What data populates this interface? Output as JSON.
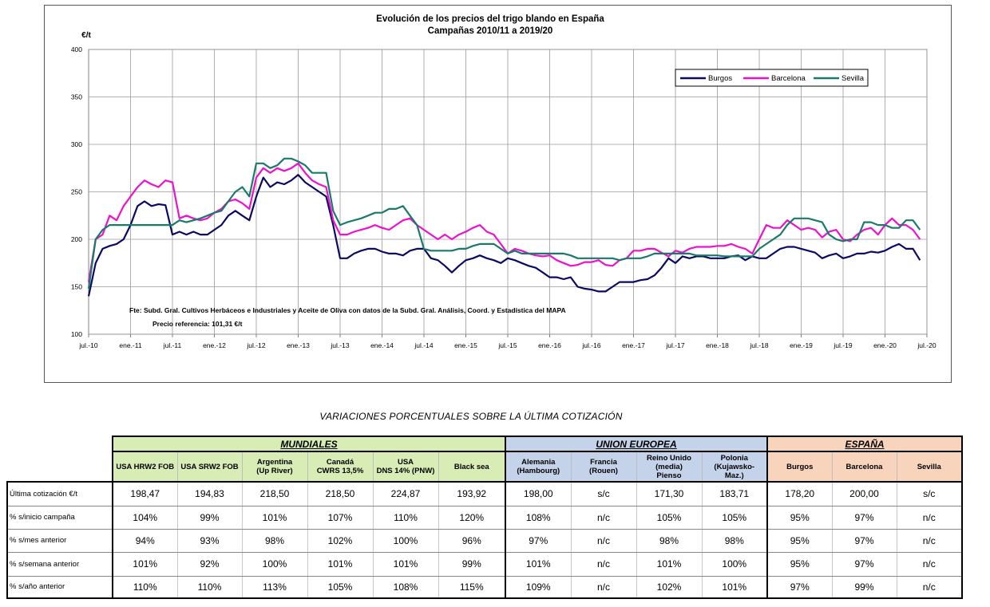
{
  "chart_data": {
    "type": "line",
    "title": "Evolución de los precios del trigo blando en España",
    "subtitle": "Campañas 2010/11 a 2019/20",
    "ylabel": "€/t",
    "ylim": [
      100,
      400
    ],
    "yticks": [
      100,
      150,
      200,
      250,
      300,
      350,
      400
    ],
    "xlim": [
      "2010-07",
      "2020-07"
    ],
    "xticks": [
      "jul.-10",
      "ene.-11",
      "jul.-11",
      "ene.-12",
      "jul.-12",
      "ene.-13",
      "jul.-13",
      "ene.-14",
      "jul.-14",
      "ene.-15",
      "jul.-15",
      "ene.-16",
      "jul.-16",
      "ene.-17",
      "jul.-17",
      "ene.-18",
      "jul.-18",
      "ene.-19",
      "jul.-19",
      "ene.-20",
      "jul.-20"
    ],
    "grid": true,
    "legend_position": "top-right",
    "series": [
      {
        "name": "Burgos",
        "color": "#0a0a64",
        "x": [
          "2010-07",
          "2010-08",
          "2010-09",
          "2010-10",
          "2010-11",
          "2010-12",
          "2011-01",
          "2011-02",
          "2011-03",
          "2011-04",
          "2011-05",
          "2011-06",
          "2011-07",
          "2011-08",
          "2011-09",
          "2011-10",
          "2011-11",
          "2011-12",
          "2012-01",
          "2012-02",
          "2012-03",
          "2012-04",
          "2012-05",
          "2012-06",
          "2012-07",
          "2012-08",
          "2012-09",
          "2012-10",
          "2012-11",
          "2012-12",
          "2013-01",
          "2013-02",
          "2013-03",
          "2013-04",
          "2013-05",
          "2013-06",
          "2013-07",
          "2013-08",
          "2013-09",
          "2013-10",
          "2013-11",
          "2013-12",
          "2014-01",
          "2014-02",
          "2014-03",
          "2014-04",
          "2014-05",
          "2014-06",
          "2014-07",
          "2014-08",
          "2014-09",
          "2014-10",
          "2014-11",
          "2014-12",
          "2015-01",
          "2015-02",
          "2015-03",
          "2015-04",
          "2015-05",
          "2015-06",
          "2015-07",
          "2015-08",
          "2015-09",
          "2015-10",
          "2015-11",
          "2015-12",
          "2016-01",
          "2016-02",
          "2016-03",
          "2016-04",
          "2016-05",
          "2016-06",
          "2016-07",
          "2016-08",
          "2016-09",
          "2016-10",
          "2016-11",
          "2016-12",
          "2017-01",
          "2017-02",
          "2017-03",
          "2017-04",
          "2017-05",
          "2017-06",
          "2017-07",
          "2017-08",
          "2017-09",
          "2017-10",
          "2017-11",
          "2017-12",
          "2018-01",
          "2018-02",
          "2018-03",
          "2018-04",
          "2018-05",
          "2018-06",
          "2018-07",
          "2018-08",
          "2018-09",
          "2018-10",
          "2018-11",
          "2018-12",
          "2019-01",
          "2019-02",
          "2019-03",
          "2019-04",
          "2019-05",
          "2019-06",
          "2019-07",
          "2019-08",
          "2019-09",
          "2019-10",
          "2019-11",
          "2019-12",
          "2020-01",
          "2020-02",
          "2020-03",
          "2020-04",
          "2020-05",
          "2020-06"
        ],
        "values": [
          140,
          175,
          190,
          193,
          195,
          200,
          215,
          235,
          240,
          235,
          237,
          236,
          205,
          208,
          205,
          208,
          205,
          205,
          210,
          215,
          225,
          230,
          225,
          220,
          245,
          265,
          255,
          260,
          258,
          262,
          268,
          260,
          255,
          250,
          245,
          215,
          180,
          180,
          185,
          188,
          190,
          190,
          187,
          185,
          185,
          183,
          188,
          190,
          190,
          180,
          178,
          172,
          165,
          172,
          178,
          180,
          183,
          180,
          178,
          175,
          180,
          178,
          175,
          172,
          170,
          165,
          160,
          160,
          158,
          160,
          150,
          148,
          147,
          145,
          145,
          150,
          155,
          155,
          155,
          157,
          158,
          162,
          170,
          180,
          175,
          182,
          180,
          182,
          182,
          180,
          180,
          180,
          182,
          183,
          178,
          182,
          180,
          180,
          185,
          190,
          192,
          192,
          190,
          188,
          186,
          180,
          183,
          185,
          180,
          182,
          185,
          185,
          187,
          186,
          188,
          192,
          195,
          190,
          190,
          178
        ]
      },
      {
        "name": "Barcelona",
        "color": "#ee11cc",
        "x": [
          "2010-07",
          "2010-08",
          "2010-09",
          "2010-10",
          "2010-11",
          "2010-12",
          "2011-01",
          "2011-02",
          "2011-03",
          "2011-04",
          "2011-05",
          "2011-06",
          "2011-07",
          "2011-08",
          "2011-09",
          "2011-10",
          "2011-11",
          "2011-12",
          "2012-01",
          "2012-02",
          "2012-03",
          "2012-04",
          "2012-05",
          "2012-06",
          "2012-07",
          "2012-08",
          "2012-09",
          "2012-10",
          "2012-11",
          "2012-12",
          "2013-01",
          "2013-02",
          "2013-03",
          "2013-04",
          "2013-05",
          "2013-06",
          "2013-07",
          "2013-08",
          "2013-09",
          "2013-10",
          "2013-11",
          "2013-12",
          "2014-01",
          "2014-02",
          "2014-03",
          "2014-04",
          "2014-05",
          "2014-06",
          "2014-07",
          "2014-08",
          "2014-09",
          "2014-10",
          "2014-11",
          "2014-12",
          "2015-01",
          "2015-02",
          "2015-03",
          "2015-04",
          "2015-05",
          "2015-06",
          "2015-07",
          "2015-08",
          "2015-09",
          "2015-10",
          "2015-11",
          "2015-12",
          "2016-01",
          "2016-02",
          "2016-03",
          "2016-04",
          "2016-05",
          "2016-06",
          "2016-07",
          "2016-08",
          "2016-09",
          "2016-10",
          "2016-11",
          "2016-12",
          "2017-01",
          "2017-02",
          "2017-03",
          "2017-04",
          "2017-05",
          "2017-06",
          "2017-07",
          "2017-08",
          "2017-09",
          "2017-10",
          "2017-11",
          "2017-12",
          "2018-01",
          "2018-02",
          "2018-03",
          "2018-04",
          "2018-05",
          "2018-06",
          "2018-07",
          "2018-08",
          "2018-09",
          "2018-10",
          "2018-11",
          "2018-12",
          "2019-01",
          "2019-02",
          "2019-03",
          "2019-04",
          "2019-05",
          "2019-06",
          "2019-07",
          "2019-08",
          "2019-09",
          "2019-10",
          "2019-11",
          "2019-12",
          "2020-01",
          "2020-02",
          "2020-03",
          "2020-04",
          "2020-05",
          "2020-06"
        ],
        "values": [
          155,
          200,
          205,
          225,
          220,
          235,
          245,
          255,
          262,
          258,
          255,
          262,
          260,
          222,
          225,
          222,
          220,
          222,
          228,
          232,
          240,
          242,
          238,
          232,
          265,
          275,
          270,
          275,
          272,
          275,
          280,
          270,
          262,
          258,
          255,
          220,
          205,
          205,
          208,
          210,
          212,
          215,
          212,
          210,
          215,
          220,
          222,
          215,
          210,
          205,
          200,
          205,
          200,
          205,
          208,
          212,
          215,
          208,
          205,
          195,
          185,
          190,
          188,
          185,
          183,
          182,
          183,
          178,
          175,
          172,
          173,
          176,
          176,
          178,
          173,
          172,
          178,
          180,
          188,
          188,
          190,
          190,
          186,
          182,
          188,
          186,
          190,
          192,
          192,
          192,
          193,
          193,
          195,
          192,
          190,
          185,
          200,
          215,
          212,
          212,
          220,
          215,
          210,
          212,
          210,
          202,
          208,
          210,
          200,
          198,
          205,
          210,
          212,
          205,
          215,
          222,
          215,
          215,
          210,
          200
        ]
      },
      {
        "name": "Sevilla",
        "color": "#1a7a6a",
        "x": [
          "2010-07",
          "2010-08",
          "2010-09",
          "2010-10",
          "2010-11",
          "2010-12",
          "2011-01",
          "2011-02",
          "2011-03",
          "2011-04",
          "2011-05",
          "2011-06",
          "2011-07",
          "2011-08",
          "2011-09",
          "2011-10",
          "2011-11",
          "2011-12",
          "2012-01",
          "2012-02",
          "2012-03",
          "2012-04",
          "2012-05",
          "2012-06",
          "2012-07",
          "2012-08",
          "2012-09",
          "2012-10",
          "2012-11",
          "2012-12",
          "2013-01",
          "2013-02",
          "2013-03",
          "2013-04",
          "2013-05",
          "2013-06",
          "2013-07",
          "2013-08",
          "2013-09",
          "2013-10",
          "2013-11",
          "2013-12",
          "2014-01",
          "2014-02",
          "2014-03",
          "2014-04",
          "2014-05",
          "2014-06",
          "2014-07",
          "2014-08",
          "2014-09",
          "2014-10",
          "2014-11",
          "2014-12",
          "2015-01",
          "2015-02",
          "2015-03",
          "2015-04",
          "2015-05",
          "2015-06",
          "2015-07",
          "2015-08",
          "2015-09",
          "2015-10",
          "2015-11",
          "2015-12",
          "2016-01",
          "2016-02",
          "2016-03",
          "2016-04",
          "2016-05",
          "2016-06",
          "2016-07",
          "2016-08",
          "2016-09",
          "2016-10",
          "2016-11",
          "2016-12",
          "2017-01",
          "2017-02",
          "2017-03",
          "2017-04",
          "2017-05",
          "2017-06",
          "2017-07",
          "2017-08",
          "2017-09",
          "2017-10",
          "2017-11",
          "2017-12",
          "2018-01",
          "2018-02",
          "2018-03",
          "2018-04",
          "2018-05",
          "2018-06",
          "2018-07",
          "2018-08",
          "2018-09",
          "2018-10",
          "2018-11",
          "2018-12",
          "2019-01",
          "2019-02",
          "2019-03",
          "2019-04",
          "2019-05",
          "2019-06",
          "2019-07",
          "2019-08",
          "2019-09",
          "2019-10",
          "2019-11",
          "2019-12",
          "2020-01",
          "2020-02",
          "2020-03",
          "2020-04",
          "2020-05",
          "2020-06"
        ],
        "values": [
          148,
          200,
          210,
          215,
          215,
          215,
          215,
          215,
          215,
          215,
          215,
          215,
          215,
          220,
          218,
          220,
          222,
          225,
          228,
          230,
          240,
          250,
          255,
          245,
          280,
          280,
          275,
          278,
          285,
          285,
          282,
          278,
          270,
          270,
          270,
          230,
          215,
          218,
          220,
          222,
          225,
          228,
          228,
          232,
          232,
          235,
          225,
          215,
          190,
          188,
          188,
          188,
          188,
          190,
          190,
          193,
          195,
          195,
          195,
          190,
          185,
          188,
          185,
          185,
          185,
          185,
          185,
          185,
          185,
          183,
          180,
          180,
          180,
          180,
          180,
          180,
          178,
          180,
          180,
          180,
          182,
          185,
          185,
          185,
          185,
          185,
          185,
          183,
          183,
          183,
          183,
          182,
          182,
          182,
          182,
          182,
          190,
          195,
          200,
          205,
          215,
          222,
          222,
          222,
          220,
          218,
          205,
          200,
          198,
          200,
          200,
          218,
          218,
          215,
          215,
          212,
          212,
          220,
          220,
          210
        ]
      }
    ],
    "source_note": "Fte: Subd. Gral. Cultivos Herbáceos e Industriales y Aceite de Oliva con datos de la Subd. Gral. Análisis, Coord. y Estadística del MAPA",
    "reference_price": "Precio referencia: 101,31 €/t"
  },
  "table": {
    "caption": "VARIACIONES PORCENTUALES SOBRE LA ÚLTIMA COTIZACIÓN",
    "groups": [
      {
        "label": "MUNDIALES",
        "color": "#d8ecb6"
      },
      {
        "label": "UNION EUROPEA",
        "color": "#c5d3ea"
      },
      {
        "label": "ESPAÑA",
        "color": "#f9d4bd"
      }
    ],
    "columns": [
      [
        "USA HRW2 FOB"
      ],
      [
        "USA SRW2 FOB"
      ],
      [
        "Argentina",
        "(Up River)"
      ],
      [
        "Canadá",
        "CWRS 13,5%"
      ],
      [
        "USA",
        "DNS 14% (PNW)"
      ],
      [
        "Black sea"
      ],
      [
        "Alemania",
        "(Hambourg)"
      ],
      [
        "Francia",
        "(Rouen)"
      ],
      [
        "Reino Unido",
        "(media)",
        "Pienso"
      ],
      [
        "Polonia",
        "(Kujawsko-",
        "Maz.)"
      ],
      [
        "Burgos"
      ],
      [
        "Barcelona"
      ],
      [
        "Sevilla"
      ]
    ],
    "rows": [
      {
        "label": "Última cotización €/t",
        "values": [
          "198,47",
          "194,83",
          "218,50",
          "218,50",
          "224,87",
          "193,92",
          "198,00",
          "s/c",
          "171,30",
          "183,71",
          "178,20",
          "200,00",
          "s/c"
        ]
      },
      {
        "label": "% s/inicio campaña",
        "values": [
          "104%",
          "99%",
          "101%",
          "107%",
          "110%",
          "120%",
          "108%",
          "n/c",
          "105%",
          "105%",
          "95%",
          "97%",
          "n/c"
        ]
      },
      {
        "label": "% s/mes anterior",
        "values": [
          "94%",
          "93%",
          "98%",
          "102%",
          "100%",
          "96%",
          "97%",
          "n/c",
          "98%",
          "98%",
          "95%",
          "97%",
          "n/c"
        ]
      },
      {
        "label": "% s/semana anterior",
        "values": [
          "101%",
          "92%",
          "100%",
          "101%",
          "101%",
          "99%",
          "101%",
          "n/c",
          "101%",
          "100%",
          "95%",
          "97%",
          "n/c"
        ]
      },
      {
        "label": "% s/año anterior",
        "values": [
          "110%",
          "110%",
          "113%",
          "105%",
          "108%",
          "115%",
          "109%",
          "n/c",
          "102%",
          "101%",
          "97%",
          "99%",
          "n/c"
        ]
      }
    ]
  }
}
